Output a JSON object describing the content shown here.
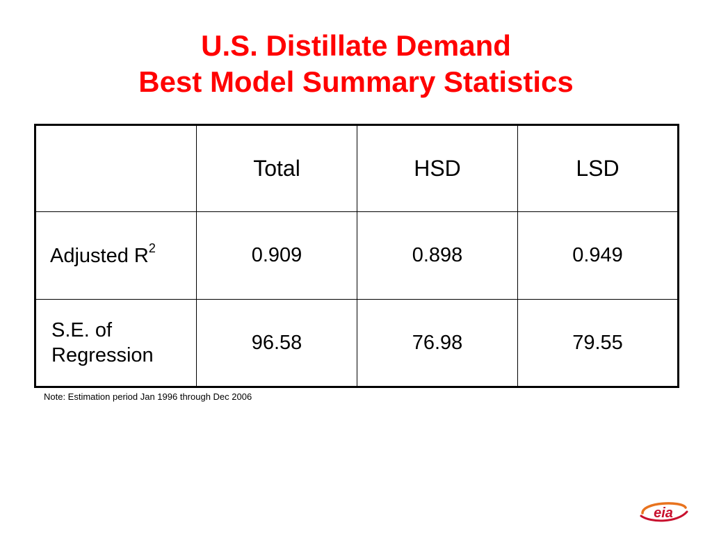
{
  "title": {
    "line1": "U.S. Distillate Demand",
    "line2": "Best Model Summary Statistics"
  },
  "table": {
    "headers": [
      "",
      "Total",
      "HSD",
      "LSD"
    ],
    "rows": [
      {
        "label": "Adjusted R",
        "label_sup": "2",
        "values": [
          "0.909",
          "0.898",
          "0.949"
        ]
      },
      {
        "label_line1": "S.E. of",
        "label_line2": "Regression",
        "values": [
          "96.58",
          "76.98",
          "79.55"
        ]
      }
    ]
  },
  "note": "Note: Estimation period Jan 1996 through Dec 2006",
  "logo": {
    "text": "eia",
    "icon": "eia-logo-icon"
  },
  "colors": {
    "title": "#ff0000",
    "logo_orange": "#e8731e",
    "logo_red": "#c8102e"
  }
}
